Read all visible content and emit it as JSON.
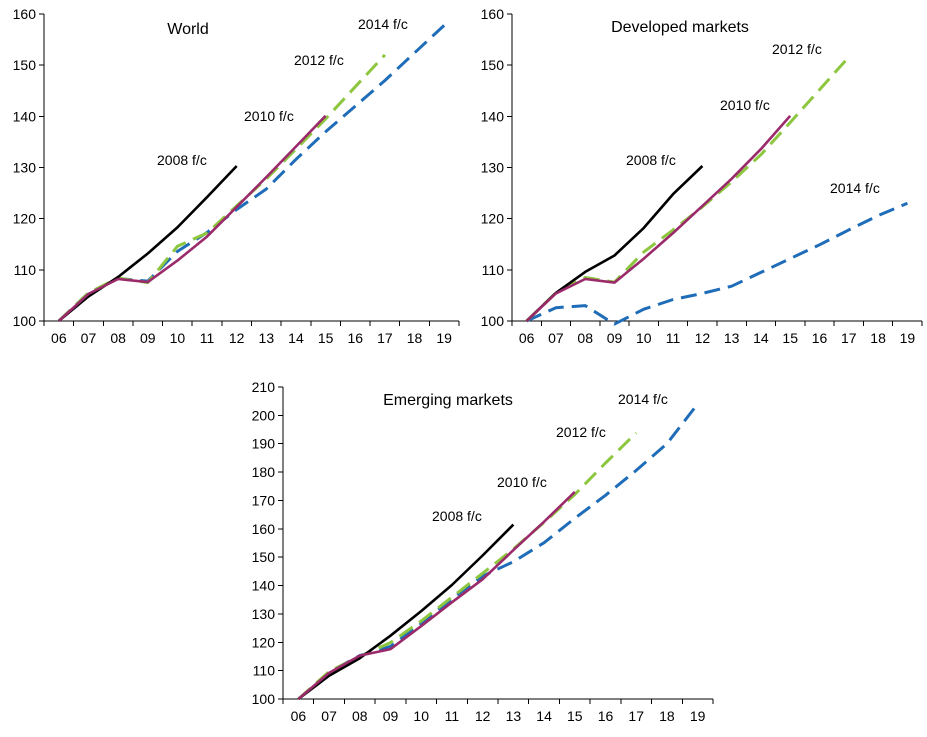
{
  "colors": {
    "2008 f/c": "#000000",
    "2010 f/c": "#9b2a6b",
    "2012 f/c": "#8dc63f",
    "2014 f/c": "#1f6db8"
  },
  "chart_data": [
    {
      "type": "line",
      "title": "World",
      "xlabel": "",
      "ylabel": "",
      "ylim": [
        100,
        160
      ],
      "yticks": [
        100,
        110,
        120,
        130,
        140,
        150,
        160
      ],
      "x_categories": [
        "06",
        "07",
        "08",
        "09",
        "10",
        "11",
        "12",
        "13",
        "14",
        "15",
        "16",
        "17",
        "18",
        "19"
      ],
      "grid": false,
      "legend": "series labels placed next to line ends",
      "series": [
        {
          "name": "2008 f/c",
          "style": "solid",
          "x": [
            "06",
            "07",
            "08",
            "09",
            "10",
            "11",
            "12"
          ],
          "values": [
            100,
            104.8,
            108.6,
            113.2,
            118.3,
            124.2,
            130.3
          ]
        },
        {
          "name": "2010 f/c",
          "style": "solid",
          "x": [
            "06",
            "07",
            "08",
            "09",
            "10",
            "11",
            "12",
            "13",
            "14",
            "15"
          ],
          "values": [
            100,
            105.3,
            108.2,
            107.6,
            111.8,
            116.5,
            122.3,
            128.1,
            134.1,
            140.1
          ]
        },
        {
          "name": "2012 f/c",
          "style": "dashed",
          "x": [
            "06",
            "07",
            "08",
            "09",
            "10",
            "11",
            "12",
            "13",
            "14",
            "15",
            "16",
            "17"
          ],
          "values": [
            100,
            105.5,
            108.4,
            107.5,
            114.6,
            117.2,
            122.5,
            127.8,
            133.6,
            139.5,
            145.8,
            152.0
          ]
        },
        {
          "name": "2014 f/c",
          "style": "dashed",
          "x": [
            "06",
            "07",
            "08",
            "09",
            "10",
            "11",
            "12",
            "13",
            "14",
            "15",
            "16",
            "17",
            "18",
            "19"
          ],
          "values": [
            100,
            105.5,
            108.3,
            107.8,
            113.6,
            117.3,
            121.8,
            125.8,
            131.6,
            137.0,
            142.0,
            147.0,
            152.4,
            157.8
          ]
        }
      ]
    },
    {
      "type": "line",
      "title": "Developed markets",
      "xlabel": "",
      "ylabel": "",
      "ylim": [
        100,
        160
      ],
      "yticks": [
        100,
        110,
        120,
        130,
        140,
        150,
        160
      ],
      "x_categories": [
        "06",
        "07",
        "08",
        "09",
        "10",
        "11",
        "12",
        "13",
        "14",
        "15",
        "16",
        "17",
        "18",
        "19"
      ],
      "grid": false,
      "legend": "series labels placed next to line ends",
      "series": [
        {
          "name": "2008 f/c",
          "style": "solid",
          "x": [
            "06",
            "07",
            "08",
            "09",
            "10",
            "11",
            "12"
          ],
          "values": [
            100,
            105.5,
            109.6,
            112.8,
            118.2,
            124.8,
            130.3
          ]
        },
        {
          "name": "2010 f/c",
          "style": "solid",
          "x": [
            "06",
            "07",
            "08",
            "09",
            "10",
            "11",
            "12",
            "13",
            "14",
            "15"
          ],
          "values": [
            100,
            105.4,
            108.2,
            107.5,
            112.2,
            117.2,
            122.5,
            127.8,
            133.6,
            140.1
          ]
        },
        {
          "name": "2012 f/c",
          "style": "dashed",
          "x": [
            "06",
            "07",
            "08",
            "09",
            "10",
            "11",
            "12",
            "13",
            "14",
            "15",
            "16",
            "17"
          ],
          "values": [
            100,
            105.5,
            108.5,
            107.6,
            113.5,
            117.8,
            122.3,
            127.2,
            132.5,
            138.8,
            145.2,
            151.6
          ]
        },
        {
          "name": "2014 f/c",
          "style": "dashed",
          "x": [
            "06",
            "07",
            "08",
            "09",
            "10",
            "11",
            "12",
            "13",
            "14",
            "15",
            "16",
            "17",
            "18",
            "19"
          ],
          "values": [
            100,
            102.6,
            103.0,
            99.4,
            102.3,
            104.2,
            105.4,
            106.8,
            109.5,
            112.2,
            114.9,
            117.8,
            120.6,
            123.0
          ]
        }
      ]
    },
    {
      "type": "line",
      "title": "Emerging markets",
      "xlabel": "",
      "ylabel": "",
      "ylim": [
        100,
        210
      ],
      "yticks": [
        100,
        110,
        120,
        130,
        140,
        150,
        160,
        170,
        180,
        190,
        200,
        210
      ],
      "x_categories": [
        "06",
        "07",
        "08",
        "09",
        "10",
        "11",
        "12",
        "13",
        "14",
        "15",
        "16",
        "17",
        "18",
        "19"
      ],
      "grid": false,
      "legend": "series labels placed next to line ends",
      "series": [
        {
          "name": "2008 f/c",
          "style": "solid",
          "x": [
            "06",
            "07",
            "08",
            "09",
            "10",
            "11",
            "12",
            "13"
          ],
          "values": [
            100,
            108.2,
            114.4,
            122.3,
            131.0,
            140.2,
            150.6,
            161.5
          ]
        },
        {
          "name": "2010 f/c",
          "style": "solid",
          "x": [
            "06",
            "07",
            "08",
            "09",
            "10",
            "11",
            "12",
            "13",
            "14",
            "15"
          ],
          "values": [
            100,
            109.2,
            115.3,
            117.6,
            125.7,
            134.1,
            142.2,
            152.5,
            162.5,
            173.0
          ]
        },
        {
          "name": "2012 f/c",
          "style": "dashed",
          "x": [
            "06",
            "07",
            "08",
            "09",
            "10",
            "11",
            "12",
            "13",
            "14",
            "15",
            "16",
            "17"
          ],
          "values": [
            100,
            109.7,
            115.0,
            119.9,
            127.5,
            135.9,
            144.3,
            152.9,
            162.3,
            172.1,
            183.2,
            193.8
          ]
        },
        {
          "name": "2014 f/c",
          "style": "dashed",
          "x": [
            "06",
            "07",
            "08",
            "09",
            "10",
            "11",
            "12",
            "13",
            "14",
            "15",
            "16",
            "17",
            "18",
            "19"
          ],
          "values": [
            100,
            109.5,
            115.3,
            118.5,
            126.6,
            135.3,
            143.3,
            148.4,
            155.1,
            163.7,
            171.8,
            180.6,
            190.0,
            204.0
          ]
        }
      ]
    }
  ]
}
